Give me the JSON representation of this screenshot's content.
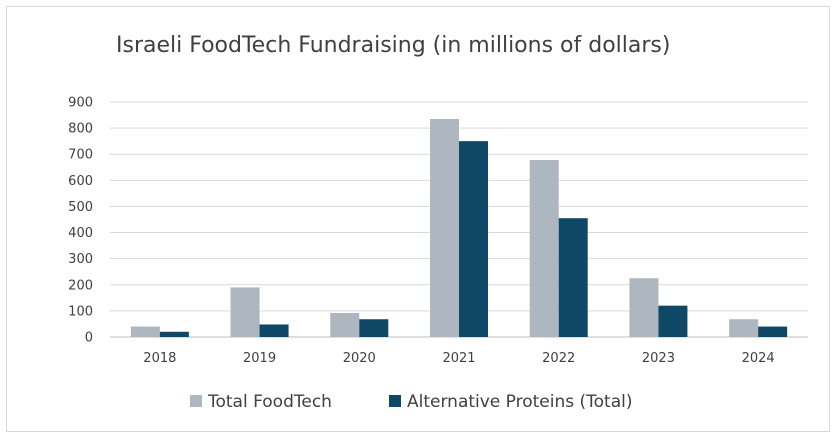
{
  "chart_data": {
    "type": "bar",
    "title": "Israeli FoodTech Fundraising (in millions of dollars)",
    "xlabel": "",
    "ylabel": "",
    "ylim": [
      0,
      900
    ],
    "yticks": [
      0,
      100,
      200,
      300,
      400,
      500,
      600,
      700,
      800,
      900
    ],
    "grid": true,
    "legend_position": "bottom",
    "categories": [
      "2018",
      "2019",
      "2020",
      "2021",
      "2022",
      "2023",
      "2024"
    ],
    "series": [
      {
        "name": "Total FoodTech",
        "color": "#aeb7bf",
        "values": [
          40,
          190,
          92,
          835,
          678,
          225,
          68
        ]
      },
      {
        "name": "Alternative Proteins (Total)",
        "color": "#0f4866",
        "values": [
          20,
          48,
          68,
          750,
          455,
          120,
          40
        ]
      }
    ]
  }
}
